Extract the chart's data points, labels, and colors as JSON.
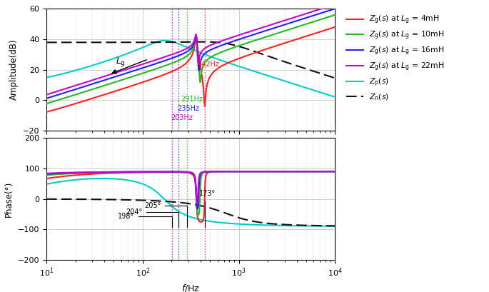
{
  "freq_range": [
    10,
    10000
  ],
  "amp_ylim": [
    -20,
    60
  ],
  "phase_ylim": [
    -200,
    200
  ],
  "amp_yticks": [
    -20,
    0,
    20,
    40,
    60
  ],
  "phase_yticks": [
    -200,
    -100,
    0,
    100,
    200
  ],
  "colors": {
    "Zg_4mH": "#ff2020",
    "Zg_10mH": "#22bb22",
    "Zg_16mH": "#2222ff",
    "Zg_22mH": "#cc00cc",
    "Zp": "#00cccc",
    "Zn": "#111111"
  },
  "resonance_freqs_amp": {
    "Zg_22mH": 203,
    "Zg_16mH": 235,
    "Zg_10mH": 291,
    "Zg_4mH": 442
  },
  "res_colors_keys": [
    "Zg_22mH",
    "Zg_16mH",
    "Zg_10mH",
    "Zg_4mH"
  ],
  "res_labels": [
    "203Hz",
    "235Hz",
    "291Hz",
    "442Hz"
  ],
  "res_label_colors": [
    "Zg_22mH",
    "Zg_16mH",
    "Zg_10mH",
    "Zg_4mH"
  ]
}
